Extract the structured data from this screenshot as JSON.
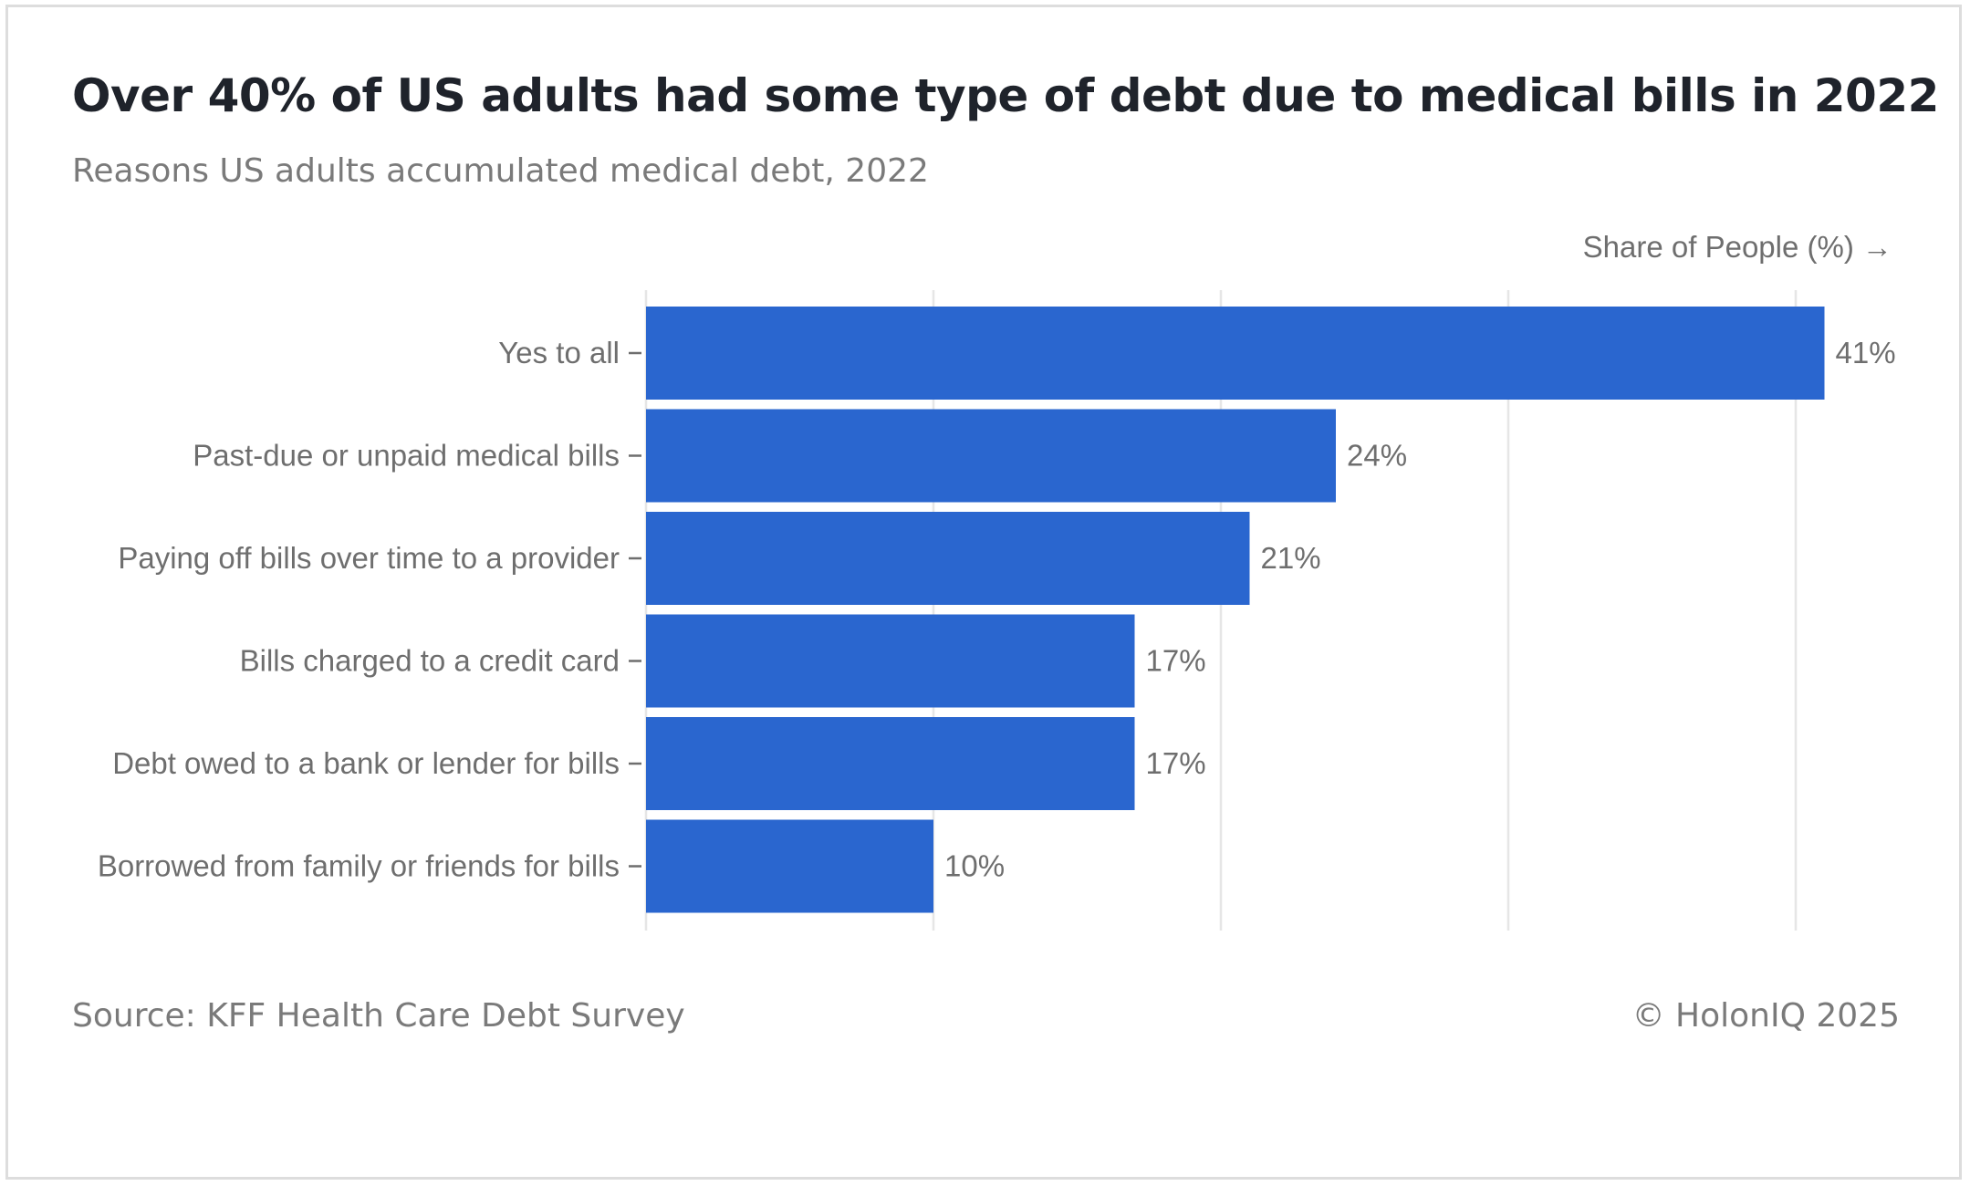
{
  "header": {
    "title": "Over 40% of US adults had some type of debt due to medical bills in 2022",
    "subtitle": "Reasons US adults accumulated medical debt, 2022"
  },
  "footer": {
    "source": "Source: KFF Health Care Debt Survey",
    "copyright": "© HolonIQ 2025"
  },
  "colors": {
    "bar": "#2a66cf",
    "grid": "#e6e6e6",
    "tick": "#6e6e6e"
  },
  "chart_data": {
    "type": "bar",
    "orientation": "horizontal",
    "title": "Over 40% of US adults had some type of debt due to medical bills in 2022",
    "subtitle": "Reasons US adults accumulated medical debt, 2022",
    "xlabel": "Share of People (%) →",
    "ylabel": "",
    "categories": [
      "Yes to all",
      "Past-due or unpaid medical bills",
      "Paying off bills over time to a provider",
      "Bills charged to a credit card",
      "Debt owed to a bank or lender for bills",
      "Borrowed from family or friends for bills"
    ],
    "values": [
      41,
      24,
      21,
      17,
      17,
      10
    ],
    "value_labels": [
      "41%",
      "24%",
      "21%",
      "17%",
      "17%",
      "10%"
    ],
    "xlim": [
      0,
      41
    ],
    "grid": true,
    "gridline_values": [
      0,
      10,
      20,
      30,
      40
    ],
    "x_tick_labels_shown": false,
    "legend": "none"
  }
}
